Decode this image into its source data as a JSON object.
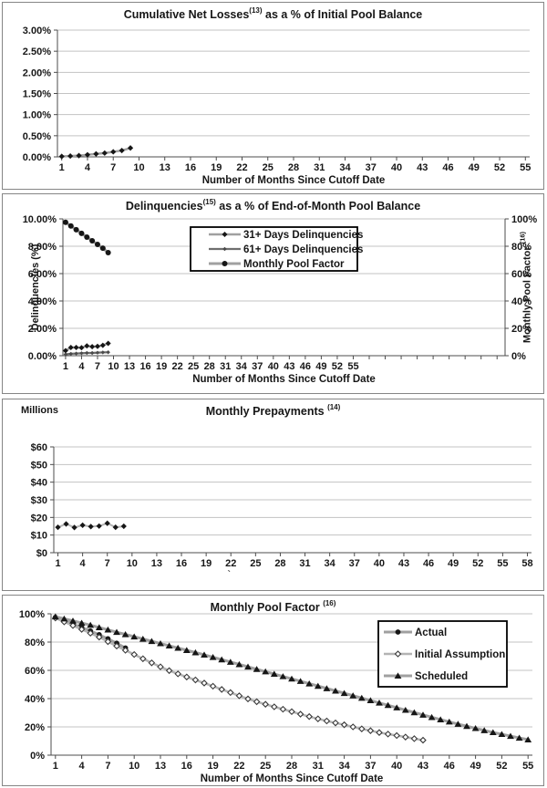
{
  "colors": {
    "text": "#161616",
    "grid": "#c3c3c3",
    "axis": "#4c4c4c",
    "panel_border": "#858585",
    "series_line_gray": "#a0a0a0",
    "series_line_dark": "#6f6f6f",
    "marker_black": "#161616",
    "legend_border": "#000000"
  },
  "chart_data": [
    {
      "type": "line",
      "title": {
        "pre": "Cumulative Net Losses",
        "sup": "(13)",
        "post": " as a % of Initial Pool Balance"
      },
      "xlabel": "Number of Months Since Cutoff Date",
      "ylabel": "",
      "ylim": [
        0,
        3
      ],
      "xlim": [
        1,
        55
      ],
      "x_tick_step": 3,
      "x_ticks": [
        1,
        4,
        7,
        10,
        13,
        16,
        19,
        22,
        25,
        28,
        31,
        34,
        37,
        40,
        43,
        46,
        49,
        52,
        55
      ],
      "y_ticks": [
        "3.00%",
        "2.50%",
        "2.00%",
        "1.50%",
        "1.00%",
        "0.50%",
        "0.00%"
      ],
      "grid": true,
      "series": [
        {
          "name": "Cumulative Net Losses",
          "marker": "diamond-filled",
          "x_start": 1,
          "y": [
            0.01,
            0.02,
            0.03,
            0.05,
            0.07,
            0.09,
            0.12,
            0.15,
            0.21
          ]
        }
      ]
    },
    {
      "type": "line",
      "title": {
        "pre": "Delinquencies",
        "sup": "(15)",
        "post": " as a % of End-of-Month Pool Balance"
      },
      "xlabel": "Number of Months Since Cutoff Date",
      "ylabel": "Delinquencies (%)",
      "y2label": {
        "pre": "Monthly Pool Factor ",
        "sup": "(16)"
      },
      "ylim": [
        0,
        10
      ],
      "y2lim": [
        0,
        100
      ],
      "xlim": [
        1,
        55
      ],
      "x_tick_step": 3,
      "extra_unlabeled_ticks_to": 82,
      "x_ticks": [
        1,
        4,
        7,
        10,
        13,
        16,
        19,
        22,
        25,
        28,
        31,
        34,
        37,
        40,
        43,
        46,
        49,
        52,
        55
      ],
      "y_ticks": [
        "10.00%",
        "8.00%",
        "6.00%",
        "4.00%",
        "2.00%",
        "0.00%"
      ],
      "y2_ticks": [
        "100%",
        "80%",
        "60%",
        "40%",
        "20%",
        "0%"
      ],
      "grid": true,
      "legend": [
        "31+ Days Delinquencies",
        "61+ Days Delinquencies",
        "Monthly Pool Factor"
      ],
      "legend_position": "top-center",
      "series": [
        {
          "name": "31+ Days Delinquencies",
          "axis": "y1",
          "marker": "diamond-filled",
          "x_start": 1,
          "y": [
            0.37,
            0.6,
            0.6,
            0.58,
            0.72,
            0.66,
            0.68,
            0.76,
            0.9
          ]
        },
        {
          "name": "61+ Days Delinquencies",
          "axis": "y1",
          "marker": "diamond-small",
          "x_start": 1,
          "y": [
            0.1,
            0.14,
            0.16,
            0.18,
            0.2,
            0.2,
            0.22,
            0.24,
            0.25
          ]
        },
        {
          "name": "Monthly Pool Factor",
          "axis": "y2",
          "marker": "circle-filled",
          "x_start": 1,
          "y": [
            97.5,
            94.8,
            92.1,
            89.4,
            86.7,
            84.0,
            81.3,
            78.6,
            75.3
          ]
        }
      ]
    },
    {
      "type": "line",
      "title": {
        "pre": "Monthly Prepayments ",
        "sup": "(14)",
        "post": ""
      },
      "xlabel": "",
      "ylabel_top": "Millions",
      "ylim": [
        0,
        60
      ],
      "xlim": [
        1,
        58
      ],
      "x_tick_step": 3,
      "x_ticks": [
        1,
        4,
        7,
        10,
        13,
        16,
        19,
        22,
        25,
        28,
        31,
        34,
        37,
        40,
        43,
        46,
        49,
        52,
        55,
        58
      ],
      "y_ticks": [
        "$60",
        "$50",
        "$40",
        "$30",
        "$20",
        "$10",
        "$0"
      ],
      "grid": true,
      "stray_mark": "`",
      "stray_mark_month": 22,
      "series": [
        {
          "name": "Monthly Prepayments",
          "marker": "diamond-filled",
          "x_start": 1,
          "y": [
            14.4,
            16.3,
            14.3,
            15.6,
            14.8,
            15.1,
            16.7,
            14.4,
            15.0
          ]
        }
      ]
    },
    {
      "type": "line",
      "title": {
        "pre": "Monthly Pool Factor ",
        "sup": "(16)",
        "post": ""
      },
      "xlabel": "Number of Months Since Cutoff Date",
      "ylabel": "",
      "ylim": [
        0,
        100
      ],
      "xlim": [
        1,
        55
      ],
      "x_tick_step": 3,
      "x_ticks": [
        1,
        4,
        7,
        10,
        13,
        16,
        19,
        22,
        25,
        28,
        31,
        34,
        37,
        40,
        43,
        46,
        49,
        52,
        55
      ],
      "y_ticks": [
        "100%",
        "80%",
        "60%",
        "40%",
        "20%",
        "0%"
      ],
      "grid": true,
      "legend": [
        "Actual",
        "Initial Assumption",
        "Scheduled"
      ],
      "legend_position": "top-right",
      "series": [
        {
          "name": "Actual",
          "marker": "circle-filled",
          "x_start": 1,
          "y": [
            97.5,
            95.2,
            92.8,
            90.3,
            87.8,
            85.2,
            82.3,
            79.2,
            75.8
          ]
        },
        {
          "name": "Initial Assumption",
          "marker": "diamond-open",
          "x_start": 1,
          "y": [
            97.0,
            94.3,
            91.7,
            89.0,
            86.3,
            83.5,
            80.3,
            77.2,
            74.2,
            71.2,
            68.2,
            65.3,
            62.5,
            59.8,
            57.5,
            55.3,
            53.2,
            51.0,
            48.8,
            46.5,
            44.3,
            42.0,
            39.8,
            37.8,
            36.0,
            34.2,
            32.5,
            30.8,
            29.0,
            27.3,
            25.7,
            24.2,
            22.8,
            21.5,
            20.0,
            18.6,
            17.3,
            16.0,
            14.9,
            13.9,
            12.8,
            11.7,
            10.6
          ]
        },
        {
          "name": "Scheduled",
          "marker": "triangle-filled",
          "x_start": 1,
          "y": [
            98.0,
            96.5,
            95.0,
            93.5,
            92.0,
            90.3,
            88.7,
            87.0,
            85.4,
            83.8,
            82.2,
            80.6,
            79.0,
            77.4,
            75.8,
            74.2,
            72.6,
            71.0,
            69.3,
            67.6,
            65.9,
            64.2,
            62.5,
            60.8,
            59.1,
            57.4,
            55.7,
            54.0,
            52.3,
            50.6,
            48.9,
            47.2,
            45.5,
            43.8,
            42.1,
            40.4,
            38.7,
            37.0,
            35.3,
            33.6,
            31.9,
            30.2,
            28.5,
            26.8,
            25.2,
            23.6,
            22.0,
            20.5,
            19.0,
            17.5,
            16.1,
            14.8,
            13.5,
            12.2,
            11.0
          ]
        }
      ]
    }
  ]
}
